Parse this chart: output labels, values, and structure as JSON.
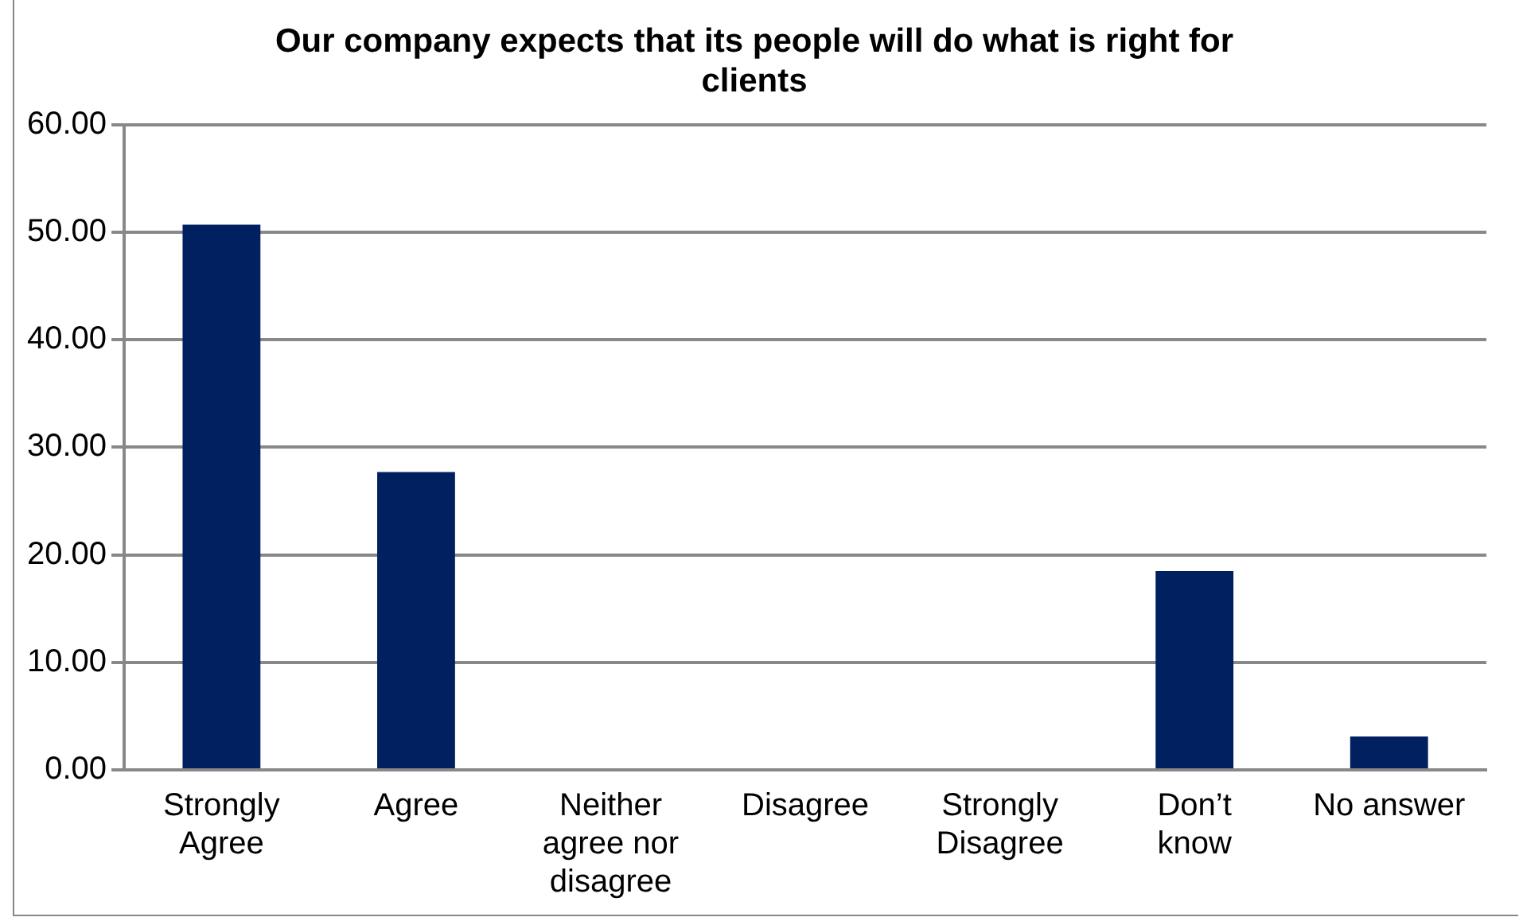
{
  "chart_data": {
    "type": "bar",
    "title": "Our company expects that its people will do what is right for clients",
    "categories": [
      "Strongly Agree",
      "Agree",
      "Neither agree nor disagree",
      "Disagree",
      "Strongly Disagree",
      "Don’t know",
      "No answer"
    ],
    "values": [
      50.7,
      27.7,
      0,
      0,
      0,
      18.5,
      3.1
    ],
    "color": "#002060",
    "ylim": [
      0,
      60
    ],
    "yticks": [
      {
        "value": 0,
        "label": "0.00"
      },
      {
        "value": 10,
        "label": "10.00"
      },
      {
        "value": 20,
        "label": "20.00"
      },
      {
        "value": 30,
        "label": "30.00"
      },
      {
        "value": 40,
        "label": "40.00"
      },
      {
        "value": 50,
        "label": "50.00"
      },
      {
        "value": 60,
        "label": "60.00"
      }
    ],
    "grid": "y",
    "legend": false
  }
}
